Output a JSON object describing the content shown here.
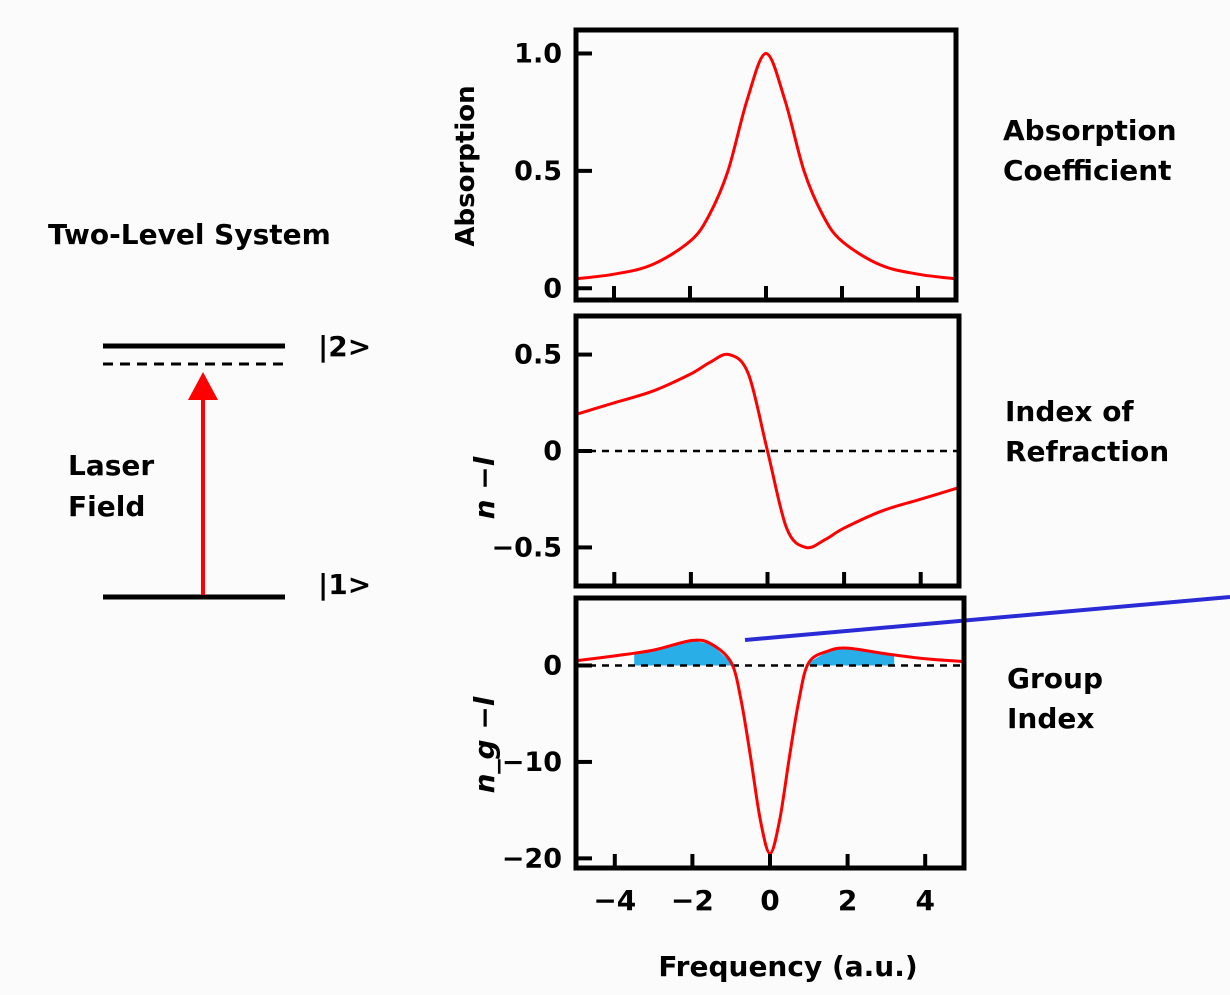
{
  "level_diagram": {
    "title": "Two-Level System",
    "upper_state": "|2>",
    "lower_state": "|1>",
    "field_label_line1": "Laser",
    "field_label_line2": "Field",
    "arrow_color": "#ff0000"
  },
  "colors": {
    "curve": "#ff0000",
    "fill": "#29aee8",
    "frame": "#000000",
    "annotation_line": "#2b2bd6"
  },
  "xlabel": "Frequency (a.u.)",
  "xticks": [
    -4,
    -2,
    0,
    2,
    4
  ],
  "xtick_labels": [
    "−4",
    "−2",
    "0",
    "2",
    "4"
  ],
  "chart_data": [
    {
      "type": "line",
      "panel": "absorption",
      "ylabel": "Absorption",
      "side_label_line1": "Absorption",
      "side_label_line2": "Coefficient",
      "xlim": [
        -5,
        5
      ],
      "ylim": [
        -0.05,
        1.1
      ],
      "yticks": [
        0,
        0.5,
        1.0
      ],
      "ytick_labels": [
        "0",
        "0.5",
        "1.0"
      ],
      "zero_line": false,
      "x": [
        -5,
        -4,
        -3,
        -2,
        -1.5,
        -1,
        -0.5,
        0,
        0.5,
        1,
        1.5,
        2,
        3,
        4,
        5
      ],
      "y": [
        0.04,
        0.06,
        0.1,
        0.2,
        0.31,
        0.5,
        0.8,
        1.0,
        0.8,
        0.5,
        0.31,
        0.2,
        0.1,
        0.06,
        0.04
      ]
    },
    {
      "type": "line",
      "panel": "refraction",
      "ylabel": "n −l",
      "side_label_line1": "Index of",
      "side_label_line2": "Refraction",
      "xlim": [
        -5,
        5
      ],
      "ylim": [
        -0.7,
        0.7
      ],
      "yticks": [
        -0.5,
        0,
        0.5
      ],
      "ytick_labels": [
        "−0.5",
        "0",
        "0.5"
      ],
      "zero_line": true,
      "x": [
        -5,
        -4,
        -3,
        -2,
        -1.5,
        -1,
        -0.5,
        0,
        0.5,
        1,
        1.5,
        2,
        3,
        4,
        5
      ],
      "y": [
        0.19,
        0.25,
        0.31,
        0.4,
        0.46,
        0.5,
        0.4,
        0.0,
        -0.4,
        -0.5,
        -0.46,
        -0.4,
        -0.31,
        -0.25,
        -0.19
      ]
    },
    {
      "type": "area",
      "panel": "group",
      "ylabel": "n_g −l",
      "side_label_line1": "Group",
      "side_label_line2": "Index",
      "xlim": [
        -5,
        5
      ],
      "ylim": [
        -21,
        7
      ],
      "yticks": [
        -20,
        -10,
        0
      ],
      "ytick_labels": [
        "−20",
        "−10",
        "0"
      ],
      "zero_line": true,
      "x": [
        -5,
        -4,
        -3,
        -2,
        -1.5,
        -1,
        -0.75,
        -0.5,
        -0.25,
        0,
        0.25,
        0.5,
        0.75,
        1,
        1.5,
        2,
        3,
        4,
        5
      ],
      "y": [
        0.5,
        1.0,
        1.6,
        2.6,
        2.2,
        0.3,
        -3.5,
        -9.5,
        -16.0,
        -19.5,
        -16.0,
        -9.5,
        -3.5,
        0.3,
        1.5,
        1.8,
        1.2,
        0.7,
        0.4
      ],
      "shaded_ranges": [
        [
          -3.5,
          -1.0
        ],
        [
          1.0,
          3.2
        ]
      ]
    }
  ]
}
